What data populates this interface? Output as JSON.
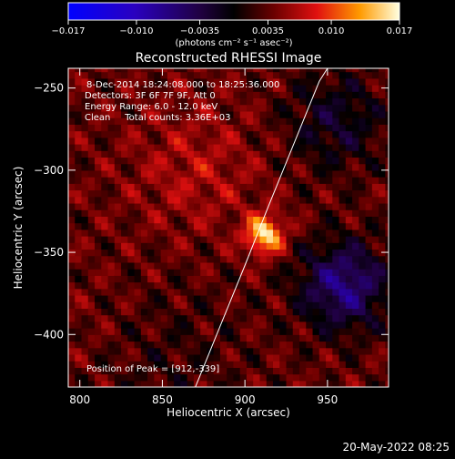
{
  "chart_data": {
    "type": "heatmap",
    "title": "Reconstructed RHESSI Image",
    "xlabel": "Heliocentric X (arcsec)",
    "ylabel": "Heliocentric Y (arcsec)",
    "xlim": [
      793,
      987
    ],
    "ylim": [
      -432,
      -238
    ],
    "x_ticks": [
      800,
      850,
      900,
      950
    ],
    "y_ticks": [
      -400,
      -350,
      -300,
      -250
    ],
    "colorbar": {
      "min": -0.017,
      "max": 0.017,
      "ticks": [
        "−0.017",
        "−0.010",
        "−0.0035",
        "0.0035",
        "0.010",
        "0.017"
      ],
      "tick_values": [
        -0.017,
        -0.01,
        -0.0035,
        0.0035,
        0.01,
        0.017
      ],
      "units": "(photons cm⁻² s⁻¹ asec⁻²)"
    },
    "annotations": [
      "8-Dec-2014 18:24:08.000 to 18:25:36.000",
      "Detectors: 3F 6F 7F 9F, Att 0",
      "Energy Range: 6.0 - 12.0 keV",
      "Clean     Total counts: 3.36E+03"
    ],
    "peak_label": "Position of Peak = [912,-339]",
    "peak": {
      "x": 912,
      "y": -339,
      "value": 0.017
    },
    "limb_curve": {
      "x": [
        870,
        885,
        900,
        915,
        930,
        945,
        950
      ],
      "y": [
        -432,
        -395,
        -358,
        -320,
        -283,
        -246,
        -238
      ]
    }
  },
  "footer": {
    "date": "20-May-2022 08:25"
  }
}
